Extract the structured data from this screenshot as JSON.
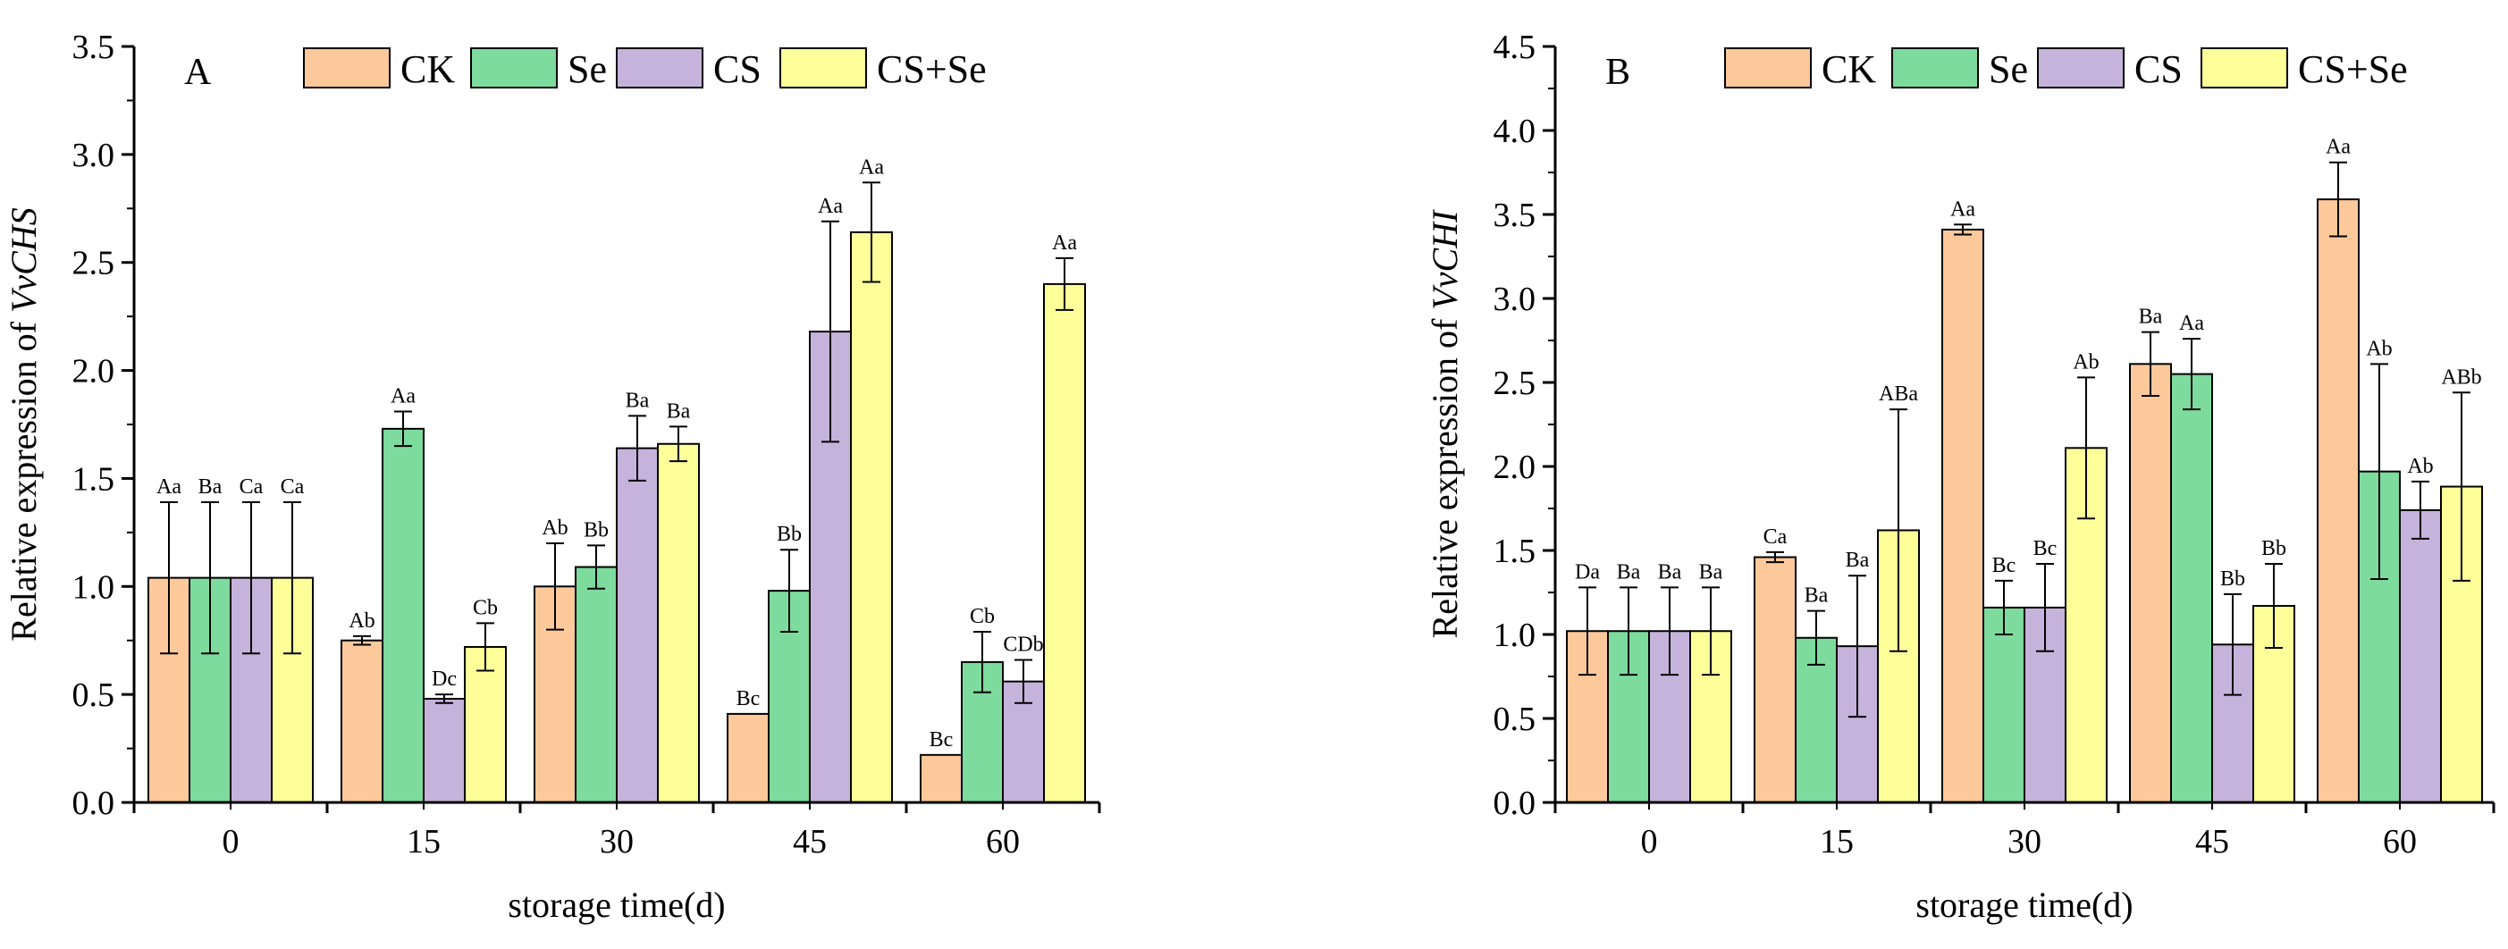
{
  "colors": {
    "CK": "#FDC99B",
    "Se": "#7DDB9E",
    "CS": "#C6B3DB",
    "CS+Se": "#FFFF99"
  },
  "chart_data": [
    {
      "panel": "A",
      "type": "bar",
      "xlabel": "storage time(d)",
      "ylabel_prefix": "Relative expression of ",
      "ylabel_gene": "VvCHS",
      "categories": [
        "0",
        "15",
        "30",
        "45",
        "60"
      ],
      "ylim": [
        0,
        3.5
      ],
      "yticks": [
        0,
        0.5,
        1,
        1.5,
        2,
        2.5,
        3,
        3.5
      ],
      "ytick_labels": [
        "0.0",
        "0.5",
        "1.0",
        "1.5",
        "2.0",
        "2.5",
        "3.0",
        "3.5"
      ],
      "legend_position": "top",
      "series": [
        {
          "name": "CK",
          "values": [
            1.04,
            0.75,
            1.0,
            0.41,
            0.22
          ],
          "errors": [
            0.35,
            0.02,
            0.2,
            0.0,
            0.0
          ],
          "labels": [
            "Aa",
            "Ab",
            "Ab",
            "Bc",
            "Bc"
          ]
        },
        {
          "name": "Se",
          "values": [
            1.04,
            1.73,
            1.09,
            0.98,
            0.65
          ],
          "errors": [
            0.35,
            0.08,
            0.1,
            0.19,
            0.14
          ],
          "labels": [
            "Ba",
            "Aa",
            "Bb",
            "Bb",
            "Cb"
          ]
        },
        {
          "name": "CS",
          "values": [
            1.04,
            0.48,
            1.64,
            2.18,
            0.56
          ],
          "errors": [
            0.35,
            0.02,
            0.15,
            0.51,
            0.1
          ],
          "labels": [
            "Ca",
            "Dc",
            "Ba",
            "Aa",
            "CDb"
          ]
        },
        {
          "name": "CS+Se",
          "values": [
            1.04,
            0.72,
            1.66,
            2.64,
            2.4
          ],
          "errors": [
            0.35,
            0.11,
            0.08,
            0.23,
            0.12
          ],
          "labels": [
            "Ca",
            "Cb",
            "Ba",
            "Aa",
            "Aa"
          ]
        }
      ]
    },
    {
      "panel": "B",
      "type": "bar",
      "xlabel": "storage time(d)",
      "ylabel_prefix": "Relative expression of ",
      "ylabel_gene": "VvCHI",
      "categories": [
        "0",
        "15",
        "30",
        "45",
        "60"
      ],
      "ylim": [
        0,
        4.5
      ],
      "yticks": [
        0,
        0.5,
        1,
        1.5,
        2,
        2.5,
        3,
        3.5,
        4,
        4.5
      ],
      "ytick_labels": [
        "0.0",
        "0.5",
        "1.0",
        "1.5",
        "2.0",
        "2.5",
        "3.0",
        "3.5",
        "4.0",
        "4.5"
      ],
      "legend_position": "top",
      "series": [
        {
          "name": "CK",
          "values": [
            1.02,
            1.46,
            3.41,
            2.61,
            3.59
          ],
          "errors": [
            0.26,
            0.03,
            0.03,
            0.19,
            0.22
          ],
          "labels": [
            "Da",
            "Ca",
            "Aa",
            "Ba",
            "Aa"
          ]
        },
        {
          "name": "Se",
          "values": [
            1.02,
            0.98,
            1.16,
            2.55,
            1.97
          ],
          "errors": [
            0.26,
            0.16,
            0.16,
            0.21,
            0.64
          ],
          "labels": [
            "Ba",
            "Ba",
            "Bc",
            "Aa",
            "Ab"
          ]
        },
        {
          "name": "CS",
          "values": [
            1.02,
            0.93,
            1.16,
            0.94,
            1.74
          ],
          "errors": [
            0.26,
            0.42,
            0.26,
            0.3,
            0.17
          ],
          "labels": [
            "Ba",
            "Ba",
            "Bc",
            "Bb",
            "Ab"
          ]
        },
        {
          "name": "CS+Se",
          "values": [
            1.02,
            1.62,
            2.11,
            1.17,
            1.88
          ],
          "errors": [
            0.26,
            0.72,
            0.42,
            0.25,
            0.56
          ],
          "labels": [
            "Ba",
            "ABa",
            "Ab",
            "Bb",
            "ABb"
          ]
        }
      ]
    }
  ]
}
